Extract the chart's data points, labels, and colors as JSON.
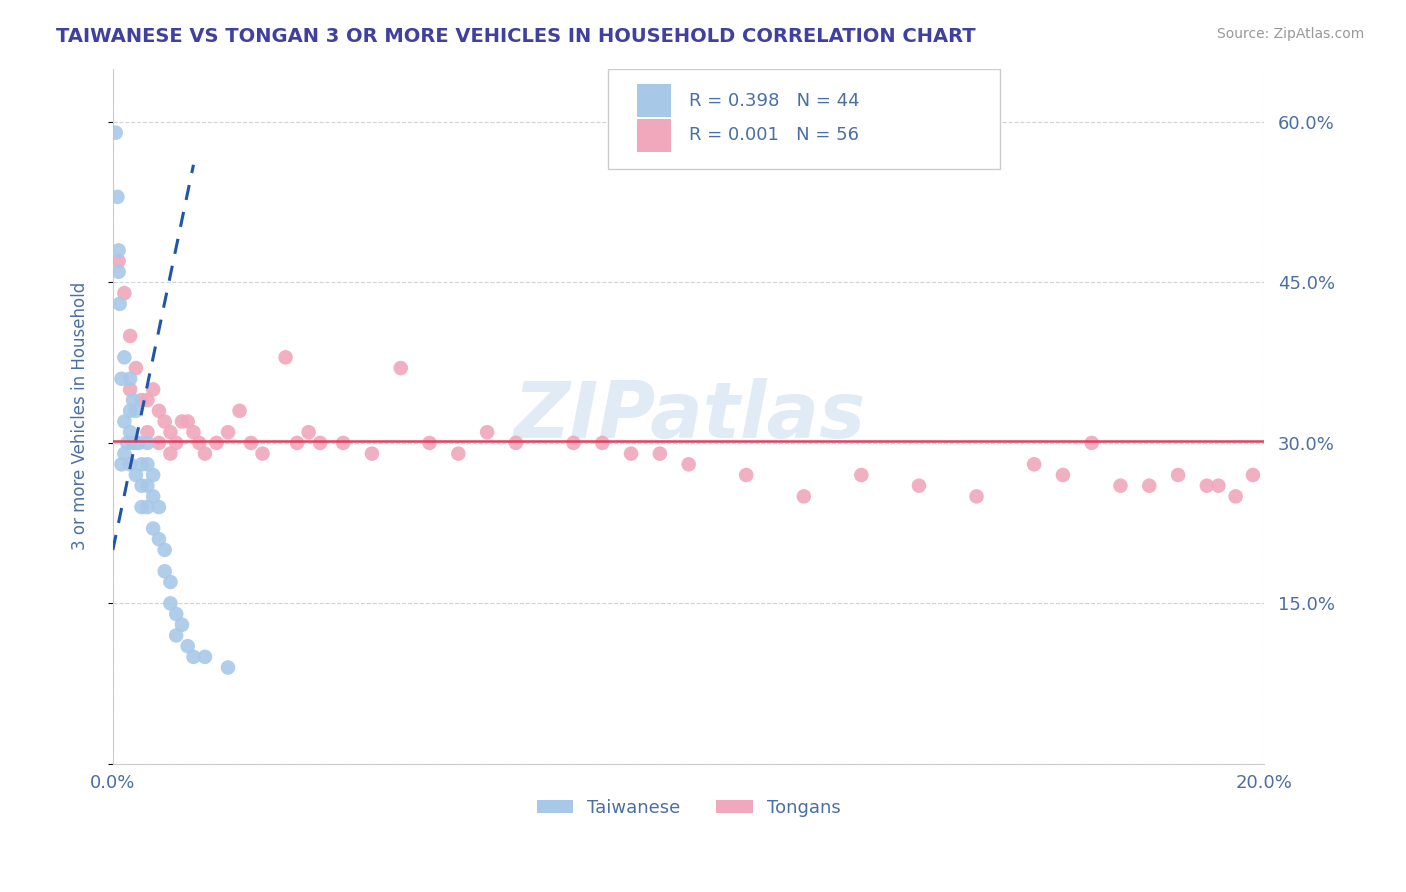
{
  "title": "TAIWANESE VS TONGAN 3 OR MORE VEHICLES IN HOUSEHOLD CORRELATION CHART",
  "source": "Source: ZipAtlas.com",
  "ylabel": "3 or more Vehicles in Household",
  "xmin": 0.0,
  "xmax": 0.2,
  "ymin": 0.0,
  "ymax": 0.65,
  "yticks": [
    0.0,
    0.15,
    0.3,
    0.45,
    0.6
  ],
  "ytick_labels": [
    "",
    "15.0%",
    "30.0%",
    "45.0%",
    "60.0%"
  ],
  "xtick_left": "0.0%",
  "xtick_right": "20.0%",
  "title_color": "#4040a0",
  "source_color": "#999999",
  "axis_label_color": "#4a6fa5",
  "watermark": "ZIPatlas",
  "taiwanese_R": 0.398,
  "taiwanese_N": 44,
  "tongan_R": 0.001,
  "tongan_N": 56,
  "taiwanese_color": "#a8c8e8",
  "tongan_color": "#f0a8bc",
  "taiwanese_line_color": "#2255aa",
  "tongan_line_color": "#e04060",
  "grid_color": "#ccccdd",
  "taiwanese_x": [
    0.0005,
    0.0008,
    0.001,
    0.001,
    0.0012,
    0.0015,
    0.0015,
    0.002,
    0.002,
    0.002,
    0.0025,
    0.003,
    0.003,
    0.003,
    0.003,
    0.0035,
    0.0035,
    0.004,
    0.004,
    0.004,
    0.0045,
    0.005,
    0.005,
    0.005,
    0.006,
    0.006,
    0.006,
    0.006,
    0.007,
    0.007,
    0.007,
    0.008,
    0.008,
    0.009,
    0.009,
    0.01,
    0.01,
    0.011,
    0.011,
    0.012,
    0.013,
    0.014,
    0.016,
    0.02
  ],
  "taiwanese_y": [
    0.59,
    0.53,
    0.48,
    0.46,
    0.43,
    0.36,
    0.28,
    0.38,
    0.32,
    0.29,
    0.3,
    0.36,
    0.33,
    0.31,
    0.28,
    0.34,
    0.3,
    0.33,
    0.3,
    0.27,
    0.3,
    0.28,
    0.26,
    0.24,
    0.3,
    0.28,
    0.26,
    0.24,
    0.27,
    0.25,
    0.22,
    0.24,
    0.21,
    0.2,
    0.18,
    0.17,
    0.15,
    0.14,
    0.12,
    0.13,
    0.11,
    0.1,
    0.1,
    0.09
  ],
  "tongan_x": [
    0.001,
    0.002,
    0.003,
    0.003,
    0.004,
    0.005,
    0.006,
    0.006,
    0.007,
    0.008,
    0.008,
    0.009,
    0.01,
    0.01,
    0.011,
    0.012,
    0.013,
    0.014,
    0.015,
    0.016,
    0.018,
    0.02,
    0.022,
    0.024,
    0.026,
    0.03,
    0.032,
    0.034,
    0.036,
    0.04,
    0.045,
    0.05,
    0.055,
    0.06,
    0.065,
    0.07,
    0.08,
    0.085,
    0.09,
    0.095,
    0.1,
    0.11,
    0.12,
    0.13,
    0.14,
    0.15,
    0.16,
    0.165,
    0.17,
    0.175,
    0.18,
    0.185,
    0.19,
    0.192,
    0.195,
    0.198
  ],
  "tongan_y": [
    0.47,
    0.44,
    0.4,
    0.35,
    0.37,
    0.34,
    0.34,
    0.31,
    0.35,
    0.33,
    0.3,
    0.32,
    0.31,
    0.29,
    0.3,
    0.32,
    0.32,
    0.31,
    0.3,
    0.29,
    0.3,
    0.31,
    0.33,
    0.3,
    0.29,
    0.38,
    0.3,
    0.31,
    0.3,
    0.3,
    0.29,
    0.37,
    0.3,
    0.29,
    0.31,
    0.3,
    0.3,
    0.3,
    0.29,
    0.29,
    0.28,
    0.27,
    0.25,
    0.27,
    0.26,
    0.25,
    0.28,
    0.27,
    0.3,
    0.26,
    0.26,
    0.27,
    0.26,
    0.26,
    0.25,
    0.27
  ]
}
